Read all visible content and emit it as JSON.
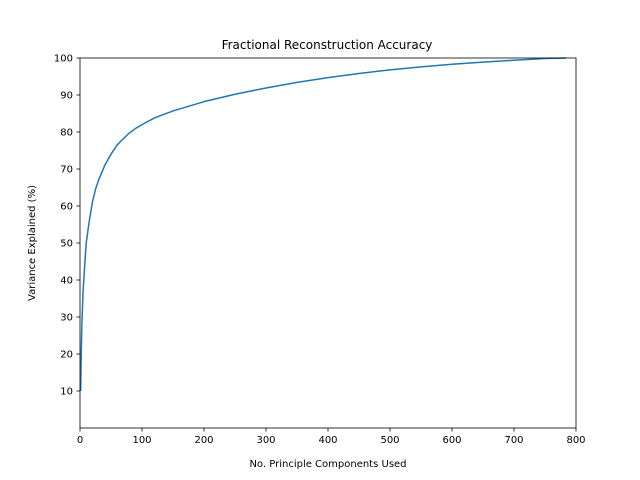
{
  "chart_data": {
    "type": "line",
    "title": "Fractional Reconstruction Accuracy",
    "xlabel": "No. Principle Components Used",
    "ylabel": "Variance Explained (%)",
    "xlim": [
      0,
      800
    ],
    "ylim": [
      0,
      100
    ],
    "xticks": [
      0,
      100,
      200,
      300,
      400,
      500,
      600,
      700,
      800
    ],
    "yticks": [
      10,
      20,
      30,
      40,
      50,
      60,
      70,
      80,
      90,
      100
    ],
    "grid": false,
    "series": [
      {
        "color": "#1f77b4",
        "x": [
          1,
          2,
          3,
          5,
          8,
          10,
          15,
          20,
          25,
          30,
          40,
          50,
          60,
          70,
          80,
          90,
          100,
          120,
          150,
          200,
          250,
          300,
          350,
          400,
          450,
          500,
          550,
          600,
          650,
          700,
          750,
          784
        ],
        "y": [
          10,
          20,
          28,
          37,
          45,
          50,
          56,
          61,
          64.5,
          67,
          71,
          74,
          76.5,
          78.2,
          79.8,
          81,
          82,
          83.8,
          85.7,
          88.2,
          90.2,
          91.9,
          93.4,
          94.7,
          95.8,
          96.8,
          97.6,
          98.3,
          98.9,
          99.4,
          99.85,
          100
        ]
      }
    ]
  }
}
